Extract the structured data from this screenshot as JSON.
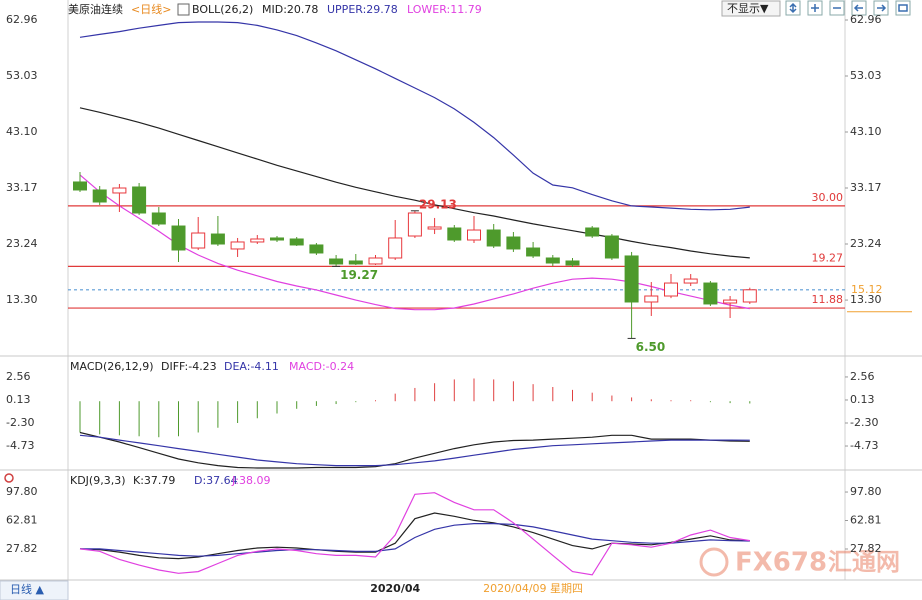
{
  "ui": {
    "dropdown": "不显示▼",
    "period_button": "日线 ▲",
    "watermark": "FX678",
    "watermark_cn": "汇通网"
  },
  "chart_data": [
    {
      "type": "candlestick",
      "title": "美原油连续",
      "period": "<日线>",
      "indicator": "BOLL(26,2)",
      "ylim": [
        3.56,
        65.62
      ],
      "yticks": [
        62.96,
        53.03,
        {
          "value": 43.1,
          "label": "43.10"
        },
        33.17,
        23.24,
        {
          "value": 13.3,
          "label": "13.30"
        }
      ],
      "up_color": "#e8383d",
      "down_color": "#4e9a2c",
      "open": [
        34.24,
        32.82,
        32.29,
        33.35,
        28.74,
        26.43,
        22.53,
        25.01,
        22.36,
        23.6,
        24.31,
        24.13,
        23.07,
        20.58,
        20.23,
        19.7,
        20.76,
        24.66,
        25.9,
        26.08,
        23.95,
        25.72,
        24.48,
        22.53,
        20.76,
        20.23,
        26.08,
        24.66,
        21.12,
        12.96,
        14.02,
        16.32,
        16.32,
        12.78,
        12.96
      ],
      "high": [
        36.01,
        33.52,
        33.88,
        34.06,
        29.8,
        27.68,
        28.03,
        28.21,
        24.31,
        24.84,
        24.66,
        24.48,
        23.42,
        21.29,
        21.47,
        21.29,
        27.5,
        29.13,
        27.86,
        26.61,
        28.21,
        26.79,
        25.37,
        23.6,
        21.29,
        20.76,
        26.43,
        25.01,
        21.83,
        16.5,
        17.92,
        17.92,
        16.68,
        14.02,
        15.5
      ],
      "low": [
        32.46,
        30.16,
        28.92,
        28.39,
        26.43,
        20.05,
        22.18,
        22.89,
        20.94,
        23.24,
        23.6,
        22.89,
        21.29,
        19.27,
        19.52,
        19.52,
        20.41,
        24.31,
        25.01,
        23.6,
        23.42,
        22.53,
        21.83,
        20.76,
        19.34,
        19.16,
        24.31,
        20.41,
        6.5,
        10.48,
        13.65,
        15.79,
        12.25,
        10.12,
        12.61
      ],
      "close": [
        32.82,
        30.69,
        33.17,
        28.74,
        26.79,
        22.18,
        25.19,
        23.24,
        23.6,
        24.13,
        23.95,
        23.07,
        21.65,
        19.7,
        19.7,
        20.76,
        24.31,
        28.74,
        26.26,
        23.95,
        25.72,
        22.89,
        22.36,
        21.12,
        19.87,
        19.52,
        24.66,
        20.76,
        12.96,
        14.02,
        16.32,
        17.03,
        12.61,
        13.3,
        15.12
      ],
      "series": [
        {
          "name": "MID:20.78",
          "color": "#222222",
          "values": [
            47.4,
            46.6,
            45.7,
            44.8,
            43.8,
            42.7,
            41.6,
            40.5,
            39.4,
            38.3,
            37.2,
            36.2,
            35.2,
            34.2,
            33.3,
            32.5,
            31.7,
            31.0,
            30.2,
            29.5,
            28.8,
            28.2,
            27.5,
            26.8,
            26.2,
            25.6,
            25.0,
            24.4,
            23.7,
            23.1,
            22.6,
            22.0,
            21.5,
            21.1,
            20.78
          ]
        },
        {
          "name": "UPPER:29.78",
          "color": "#3535a8",
          "values": [
            59.9,
            60.4,
            60.9,
            61.5,
            62.0,
            62.5,
            62.6,
            62.6,
            62.5,
            62.0,
            61.2,
            60.2,
            58.9,
            57.5,
            55.9,
            54.3,
            52.6,
            50.9,
            49.2,
            47.2,
            44.8,
            42.1,
            39.0,
            35.8,
            33.7,
            33.2,
            32.0,
            30.9,
            30.0,
            29.8,
            29.6,
            29.4,
            29.3,
            29.4,
            29.78
          ]
        },
        {
          "name": "LOWER:11.79",
          "color": "#e040e0",
          "values": [
            35.5,
            32.5,
            30.0,
            27.8,
            25.5,
            23.1,
            21.3,
            19.8,
            18.6,
            17.6,
            16.6,
            15.8,
            15.1,
            14.2,
            13.3,
            12.5,
            11.8,
            11.6,
            11.6,
            11.9,
            12.6,
            13.5,
            14.4,
            15.4,
            16.3,
            17.0,
            17.2,
            17.0,
            16.5,
            15.7,
            14.8,
            14.0,
            13.2,
            12.4,
            11.79
          ]
        }
      ],
      "hlines": [
        {
          "value": 30,
          "label": "30.00",
          "color": "#e03a3a"
        },
        {
          "value": 19.27,
          "color": "#e03a3a"
        },
        {
          "value": 11.88,
          "color": "#e03a3a"
        },
        {
          "value": 15.12,
          "color": "#5b9bd5",
          "label_color": "#f0a030",
          "dashed": true
        }
      ],
      "annotations": [
        {
          "index": 17,
          "value": 29.13,
          "color": "#e03a3a",
          "position": "above"
        },
        {
          "index": 13,
          "value": 19.27,
          "color": "#4e9a2c",
          "position": "below"
        },
        {
          "index": 28,
          "value": 6.5,
          "label": "6.50",
          "color": "#4e9a2c",
          "position": "below"
        }
      ]
    },
    {
      "type": "macd",
      "title": "MACD(26,12,9)",
      "ylim": [
        -7.26,
        4.56
      ],
      "yticks": [
        2.56,
        0.13,
        {
          "value": -2.3,
          "label": "-2.30"
        },
        -4.73
      ],
      "up_color": "#e04040",
      "down_color": "#4e9a2c",
      "histogram": {
        "name": "MACD:-0.24",
        "color": "#e040e0",
        "values": [
          -3.3,
          -3.5,
          -3.6,
          -3.7,
          -3.8,
          -3.7,
          -3.3,
          -2.8,
          -2.3,
          -1.8,
          -1.3,
          -0.8,
          -0.5,
          -0.3,
          -0.1,
          0.1,
          0.8,
          1.4,
          1.9,
          2.3,
          2.4,
          2.3,
          2.1,
          1.8,
          1.5,
          1.2,
          0.9,
          0.6,
          0.4,
          0.2,
          0.1,
          0.1,
          -0.1,
          -0.2,
          -0.24
        ]
      },
      "series": [
        {
          "name": "DIFF:-4.23",
          "color": "#222222",
          "values": [
            -3.3,
            -3.8,
            -4.3,
            -4.9,
            -5.5,
            -6.1,
            -6.5,
            -6.8,
            -7.0,
            -7.05,
            -7.05,
            -7.05,
            -7.0,
            -7.0,
            -7.0,
            -6.9,
            -6.6,
            -6.0,
            -5.5,
            -5.0,
            -4.6,
            -4.3,
            -4.15,
            -4.1,
            -4.0,
            -3.9,
            -3.8,
            -3.6,
            -3.6,
            -4.0,
            -4.0,
            -4.0,
            -4.1,
            -4.2,
            -4.23
          ]
        },
        {
          "name": "DEA:-4.11",
          "color": "#3535a8",
          "values": [
            -3.6,
            -3.8,
            -4.1,
            -4.4,
            -4.7,
            -5.0,
            -5.3,
            -5.6,
            -5.9,
            -6.2,
            -6.4,
            -6.6,
            -6.7,
            -6.8,
            -6.8,
            -6.8,
            -6.7,
            -6.5,
            -6.3,
            -6.0,
            -5.7,
            -5.4,
            -5.1,
            -4.9,
            -4.7,
            -4.6,
            -4.5,
            -4.4,
            -4.3,
            -4.2,
            -4.1,
            -4.1,
            -4.1,
            -4.1,
            -4.11
          ]
        }
      ]
    },
    {
      "type": "line",
      "title": "KDJ(9,3,3)",
      "ylim": [
        -7.8,
        122.4
      ],
      "yticks": [
        {
          "value": 97.8,
          "label": "97.80"
        },
        62.81,
        27.82
      ],
      "categories": [
        null,
        null,
        null,
        null,
        null,
        null,
        null,
        null,
        null,
        null,
        null,
        null,
        null,
        null,
        null,
        null,
        "2020/04",
        null,
        null,
        null,
        null,
        null,
        null,
        null,
        null,
        null,
        null,
        null,
        null,
        null,
        null,
        null,
        null,
        null,
        null
      ],
      "cursor": {
        "index": 23,
        "label": "2020/04/09 星期四"
      },
      "series": [
        {
          "name": "K:37.79",
          "color": "#222222",
          "values": [
            28,
            27,
            24,
            20,
            17,
            16,
            18,
            22,
            26,
            29,
            30,
            29,
            27,
            25,
            24,
            24,
            35,
            65,
            72,
            68,
            63,
            60,
            55,
            48,
            40,
            32,
            28,
            35,
            34,
            33,
            36,
            40,
            44,
            39,
            37.79
          ]
        },
        {
          "name": "D:37.64",
          "color": "#3535a8",
          "values": [
            28,
            28,
            26,
            24,
            22,
            20,
            19,
            20,
            22,
            24,
            26,
            27,
            27,
            26,
            25,
            25,
            28,
            42,
            52,
            57,
            59,
            59,
            58,
            55,
            50,
            45,
            40,
            38,
            36,
            35,
            35,
            37,
            39,
            38,
            37.64
          ]
        },
        {
          "name": "J:38.09",
          "color": "#e040e0",
          "values": [
            28,
            25,
            15,
            8,
            2,
            -2,
            0,
            10,
            20,
            25,
            28,
            26,
            22,
            20,
            20,
            18,
            45,
            95,
            97,
            85,
            76,
            76,
            60,
            40,
            20,
            0,
            -4,
            35,
            33,
            30,
            35,
            45,
            51,
            42,
            38.09
          ]
        }
      ]
    }
  ]
}
